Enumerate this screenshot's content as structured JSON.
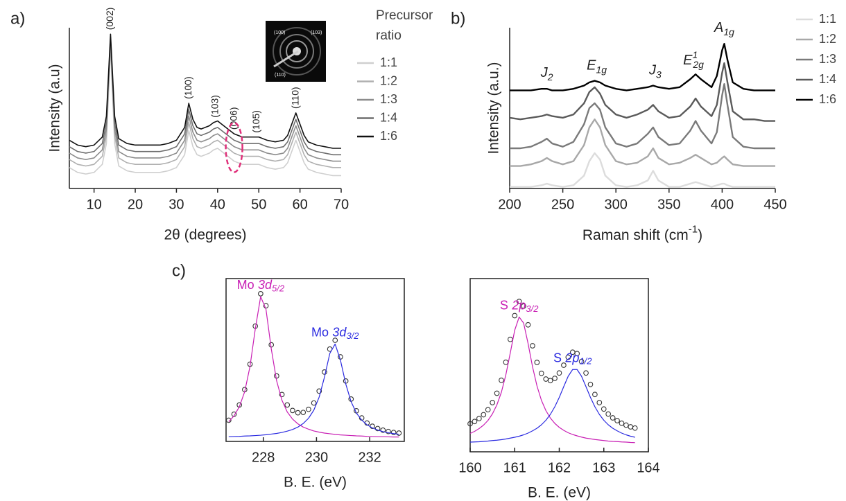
{
  "chart_data": [
    {
      "type": "line",
      "panel_label": "a)",
      "xlabel": "2θ (degrees)",
      "ylabel": "Intensity (a.u)",
      "legend": "right",
      "legend_title": "Precursor ratio",
      "xlim": [
        4,
        70
      ],
      "xticks": [
        10,
        20,
        30,
        40,
        50,
        60,
        70
      ],
      "ylim": [
        0,
        100
      ],
      "x": [
        4,
        6,
        8,
        10,
        12,
        13,
        14,
        15,
        16,
        18,
        20,
        22,
        24,
        26,
        28,
        30,
        32,
        33,
        34,
        35,
        36,
        38,
        39,
        40,
        41,
        42,
        44,
        46,
        48,
        50,
        52,
        54,
        56,
        57,
        58,
        59,
        60,
        61,
        62,
        64,
        66,
        68,
        70
      ],
      "series": [
        {
          "name": "1:1",
          "color": "#cfcfcf",
          "values": [
            13,
            10,
            9,
            10,
            15,
            28,
            88,
            28,
            14,
            11,
            10,
            10,
            10,
            10,
            11,
            13,
            21,
            36,
            26,
            21,
            20,
            22,
            24,
            25,
            23,
            21,
            17,
            15,
            15,
            15,
            13,
            12,
            13,
            16,
            23,
            30,
            23,
            16,
            12,
            10,
            9,
            8,
            8
          ]
        },
        {
          "name": "1:2",
          "color": "#b0b0b0",
          "values": [
            18,
            15,
            14,
            15,
            20,
            33,
            90,
            33,
            19,
            16,
            15,
            15,
            15,
            15,
            16,
            18,
            26,
            41,
            31,
            26,
            25,
            27,
            29,
            30,
            28,
            26,
            22,
            20,
            20,
            20,
            18,
            17,
            18,
            21,
            28,
            35,
            28,
            21,
            17,
            15,
            14,
            13,
            13
          ]
        },
        {
          "name": "1:3",
          "color": "#8c8c8c",
          "values": [
            22,
            19,
            18,
            19,
            24,
            37,
            92,
            37,
            23,
            20,
            19,
            19,
            19,
            19,
            20,
            22,
            30,
            45,
            35,
            30,
            29,
            31,
            33,
            34,
            32,
            30,
            26,
            24,
            24,
            24,
            22,
            21,
            22,
            25,
            32,
            39,
            32,
            25,
            21,
            19,
            18,
            17,
            17
          ]
        },
        {
          "name": "1:4",
          "color": "#6e6e6e",
          "values": [
            26,
            23,
            22,
            23,
            28,
            41,
            94,
            41,
            27,
            24,
            23,
            23,
            23,
            23,
            24,
            26,
            34,
            49,
            39,
            34,
            33,
            35,
            37,
            38,
            36,
            34,
            30,
            28,
            28,
            28,
            26,
            25,
            26,
            29,
            36,
            43,
            36,
            29,
            25,
            23,
            22,
            21,
            21
          ]
        },
        {
          "name": "1:6",
          "color": "#111111",
          "values": [
            30,
            27,
            26,
            27,
            32,
            45,
            96,
            45,
            31,
            28,
            27,
            27,
            27,
            27,
            28,
            30,
            38,
            53,
            43,
            38,
            37,
            39,
            41,
            42,
            40,
            38,
            34,
            32,
            32,
            32,
            30,
            29,
            30,
            33,
            40,
            47,
            40,
            33,
            29,
            27,
            26,
            25,
            25
          ]
        }
      ],
      "annotations": [
        {
          "text": "(002)",
          "x": 14
        },
        {
          "text": "(100)",
          "x": 33
        },
        {
          "text": "(103)",
          "x": 39.5
        },
        {
          "text": "(006)",
          "x": 44
        },
        {
          "text": "(105)",
          "x": 49.5
        },
        {
          "text": "(110)",
          "x": 59
        }
      ],
      "inset_labels": [
        "(100)",
        "(103)",
        "(110)"
      ]
    },
    {
      "type": "line",
      "panel_label": "b)",
      "xlabel": {
        "text": "Raman shift (cm",
        "sup": "-1",
        "tail": ")"
      },
      "ylabel": "Intensity (a.u.)",
      "legend": "right",
      "xlim": [
        200,
        450
      ],
      "xticks": [
        200,
        250,
        300,
        350,
        400,
        450
      ],
      "ylim": [
        0,
        100
      ],
      "x": [
        200,
        210,
        220,
        230,
        235,
        240,
        250,
        260,
        270,
        275,
        280,
        285,
        290,
        300,
        310,
        320,
        330,
        335,
        340,
        350,
        360,
        370,
        375,
        380,
        390,
        395,
        400,
        402,
        405,
        410,
        420,
        430,
        440,
        450
      ],
      "series": [
        {
          "name": "1:1",
          "color": "#dcdcdc",
          "values": [
            1,
            1,
            1,
            2,
            3,
            2,
            1,
            2,
            8,
            17,
            22,
            18,
            8,
            2,
            1,
            2,
            5,
            11,
            5,
            1,
            1,
            3,
            4,
            3,
            1,
            2,
            3,
            3,
            2,
            1,
            1,
            1,
            1,
            1
          ]
        },
        {
          "name": "1:2",
          "color": "#a8a8a8",
          "values": [
            14,
            14,
            15,
            17,
            19,
            17,
            15,
            17,
            27,
            38,
            43,
            38,
            27,
            17,
            15,
            16,
            20,
            25,
            19,
            15,
            16,
            19,
            21,
            19,
            15,
            16,
            19,
            20,
            18,
            15,
            14,
            14,
            14,
            14
          ]
        },
        {
          "name": "1:3",
          "color": "#7a7a7a",
          "values": [
            25,
            25,
            26,
            29,
            31,
            28,
            26,
            29,
            40,
            50,
            53,
            49,
            38,
            28,
            26,
            28,
            34,
            38,
            32,
            27,
            28,
            36,
            42,
            36,
            28,
            35,
            58,
            65,
            52,
            32,
            26,
            25,
            25,
            25
          ]
        },
        {
          "name": "1:4",
          "color": "#5a5a5a",
          "values": [
            44,
            43,
            44,
            45,
            46,
            45,
            44,
            46,
            53,
            60,
            63,
            59,
            52,
            46,
            44,
            46,
            49,
            52,
            48,
            44,
            45,
            51,
            56,
            51,
            45,
            52,
            72,
            78,
            66,
            48,
            43,
            43,
            42,
            42
          ]
        },
        {
          "name": "1:6",
          "color": "#000000",
          "values": [
            61,
            61,
            61,
            62,
            62,
            61,
            61,
            62,
            64,
            66,
            67,
            66,
            64,
            62,
            61,
            62,
            63,
            64,
            63,
            62,
            63,
            68,
            71,
            68,
            63,
            70,
            86,
            90,
            80,
            66,
            62,
            61,
            61,
            61
          ]
        }
      ],
      "annotations": [
        {
          "text": "J",
          "sub": "2",
          "x": 235
        },
        {
          "text": "E",
          "sub": "1g",
          "x": 282
        },
        {
          "text": "J",
          "sub": "3",
          "x": 337
        },
        {
          "text": "E",
          "sup": "1",
          "sub": "2g",
          "x": 373
        },
        {
          "text": "A",
          "sub": "1g",
          "x": 402
        }
      ]
    },
    {
      "type": "line",
      "panel_label": "c)",
      "xlabel": "B. E. (eV)",
      "xlim": [
        226.6,
        233.3
      ],
      "xticks": [
        228,
        230,
        232
      ],
      "ylim": [
        0,
        100
      ],
      "x": [
        226.7,
        226.9,
        227.1,
        227.3,
        227.5,
        227.7,
        227.9,
        228.1,
        228.3,
        228.5,
        228.7,
        228.9,
        229.1,
        229.3,
        229.5,
        229.7,
        229.9,
        230.1,
        230.3,
        230.5,
        230.7,
        230.9,
        231.1,
        231.3,
        231.5,
        231.7,
        231.9,
        232.1,
        232.3,
        232.5,
        232.7,
        232.9,
        233.1
      ],
      "series": [
        {
          "style": "markers",
          "color": "#333333",
          "values": [
            13.0,
            16.7,
            22.4,
            31.8,
            47.4,
            70.8,
            90.7,
            83.3,
            59.3,
            40.2,
            28.8,
            22.4,
            19.0,
            17.6,
            17.8,
            19.7,
            23.6,
            30.9,
            42.6,
            56.7,
            62.1,
            51.9,
            37.1,
            26.0,
            18.8,
            14.4,
            11.3,
            9.3,
            7.9,
            6.9,
            6.1,
            5.5,
            5.1
          ]
        },
        {
          "color": "#c81eb4",
          "values": [
            12.1,
            15.7,
            21.3,
            30.5,
            46,
            69.2,
            88.9,
            81.2,
            56.8,
            37.3,
            25.3,
            18.1,
            13.7,
            10.8,
            8.8,
            7.5,
            6.4,
            5.7,
            5.1,
            4.7,
            4.3,
            4.0,
            3.8,
            3.6,
            3.4,
            3.3,
            3.1,
            3.0,
            2.9,
            2.9,
            2.8,
            2.7,
            2.7
          ]
        },
        {
          "color": "#2a2ae0",
          "values": [
            2.9,
            3.0,
            3.1,
            3.3,
            3.4,
            3.6,
            3.8,
            4.1,
            4.5,
            4.9,
            5.5,
            6.3,
            7.3,
            8.8,
            11.0,
            14.2,
            19.2,
            27.2,
            39.5,
            54,
            59.8,
            49.9,
            35.3,
            24.4,
            17.4,
            13.1,
            10.2,
            8.3,
            7.0,
            6.0,
            5.3,
            4.8,
            4.4
          ]
        }
      ],
      "annotations": [
        {
          "text": "Mo",
          "italic": "3d",
          "sub": "5/2",
          "color": "#c81eb4"
        },
        {
          "text": "Mo",
          "italic": "3d",
          "sub": "3/2",
          "color": "#2a2ae0"
        }
      ]
    },
    {
      "type": "line",
      "xlabel": "B. E. (eV)",
      "xlim": [
        160,
        164
      ],
      "xticks": [
        160,
        161,
        162,
        163,
        164
      ],
      "ylim": [
        0,
        100
      ],
      "x": [
        160.0,
        160.1,
        160.2,
        160.3,
        160.4,
        160.5,
        160.6,
        160.7,
        160.8,
        160.9,
        161.0,
        161.1,
        161.2,
        161.3,
        161.4,
        161.5,
        161.6,
        161.7,
        161.8,
        161.9,
        162.0,
        162.1,
        162.2,
        162.3,
        162.4,
        162.5,
        162.6,
        162.7,
        162.8,
        162.9,
        163.0,
        163.1,
        163.2,
        163.3,
        163.4,
        163.5,
        163.6,
        163.7
      ],
      "series": [
        {
          "style": "markers",
          "color": "#333333",
          "values": [
            16.2,
            17.5,
            19.2,
            21.4,
            24.3,
            28.4,
            33.8,
            41.3,
            51.7,
            64.9,
            78.6,
            86.8,
            84.1,
            73.3,
            61.2,
            51.6,
            45.3,
            42.0,
            41.1,
            42.4,
            45.5,
            50.0,
            54.6,
            57.5,
            56.7,
            52.1,
            45.5,
            38.9,
            33.1,
            28.4,
            24.7,
            21.8,
            19.6,
            18.0,
            16.5,
            15.4,
            14.4,
            13.7
          ]
        },
        {
          "color": "#c81eb4",
          "values": [
            10.6,
            11.8,
            13.4,
            15.4,
            18.1,
            21.9,
            27.1,
            34.3,
            44.3,
            57.0,
            70.2,
            77.8,
            74.3,
            62.5,
            49.1,
            38.0,
            29.7,
            23.8,
            19.5,
            16.4,
            14.1,
            12.4,
            11.0,
            10.0,
            9.2,
            8.5,
            7.9,
            7.5,
            7.1,
            6.8,
            6.5,
            6.2,
            6.0,
            5.9,
            5.7,
            5.6,
            5.4,
            5.3
          ]
        },
        {
          "color": "#2a2ae0",
          "values": [
            5.6,
            5.7,
            5.8,
            6.0,
            6.2,
            6.5,
            6.7,
            7.0,
            7.4,
            7.9,
            8.4,
            9.0,
            9.8,
            10.8,
            12.1,
            13.6,
            15.6,
            18.2,
            21.6,
            26,
            31.4,
            37.6,
            43.6,
            47.5,
            47.5,
            43.6,
            37.6,
            31.4,
            26,
            21.6,
            18.2,
            15.6,
            13.6,
            12.1,
            10.8,
            9.8,
            9.0,
            8.4
          ]
        }
      ],
      "annotations": [
        {
          "text": "S",
          "italic": "2p",
          "sub": "3/2",
          "color": "#c81eb4"
        },
        {
          "text": "S",
          "italic": "2p",
          "sub": "1/2",
          "color": "#2a2ae0"
        }
      ]
    }
  ]
}
